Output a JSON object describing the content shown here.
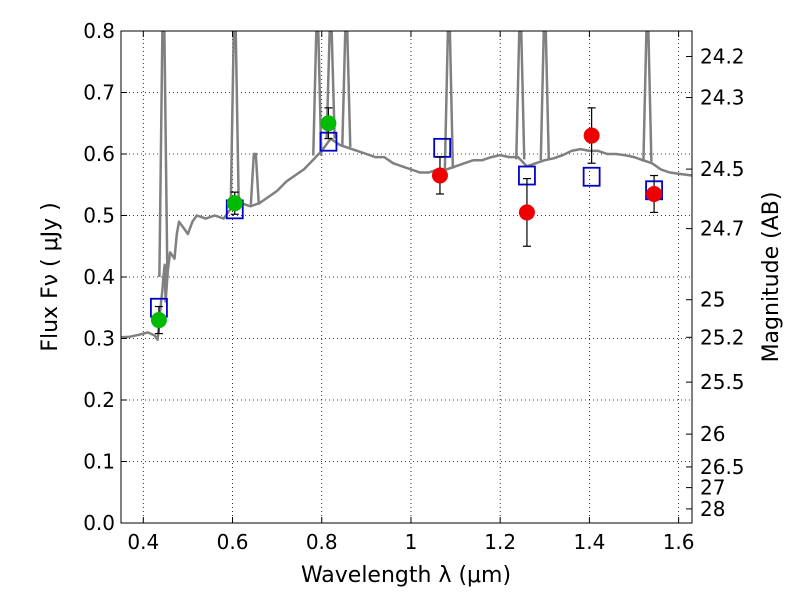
{
  "chart_data": {
    "type": "scatter",
    "title": "",
    "xlabel": "Wavelength  λ (μm)",
    "ylabel": "Flux  Fν  ( μJy )",
    "ylabel_right": "Magnitude (AB)",
    "xlim": [
      0.35,
      1.63
    ],
    "ylim": [
      0.0,
      0.8
    ],
    "grid": true,
    "x_ticks": [
      0.4,
      0.6,
      0.8,
      1.0,
      1.2,
      1.4,
      1.6
    ],
    "x_tick_labels": [
      "0.4",
      "0.6",
      "0.8",
      "1",
      "1.2",
      "1.4",
      "1.6"
    ],
    "y_ticks": [
      0.0,
      0.1,
      0.2,
      0.3,
      0.4,
      0.5,
      0.6,
      0.7,
      0.8
    ],
    "y_tick_labels": [
      "0.0",
      "0.1",
      "0.2",
      "0.3",
      "0.4",
      "0.5",
      "0.6",
      "0.7",
      "0.8"
    ],
    "right_ticks": [
      {
        "mag": 24.2,
        "label": "24.2"
      },
      {
        "mag": 24.3,
        "label": "24.3"
      },
      {
        "mag": 24.5,
        "label": "24.5"
      },
      {
        "mag": 24.7,
        "label": "24.7"
      },
      {
        "mag": 25.0,
        "label": "25"
      },
      {
        "mag": 25.2,
        "label": "25.2"
      },
      {
        "mag": 25.5,
        "label": "25.5"
      },
      {
        "mag": 26.0,
        "label": "26"
      },
      {
        "mag": 26.5,
        "label": "26.5"
      },
      {
        "mag": 27.0,
        "label": "27"
      },
      {
        "mag": 28.0,
        "label": "28"
      }
    ],
    "series": [
      {
        "kind": "spectrum",
        "color": "#808080",
        "points": [
          [
            0.35,
            0.302
          ],
          [
            0.37,
            0.303
          ],
          [
            0.39,
            0.306
          ],
          [
            0.41,
            0.31
          ],
          [
            0.425,
            0.305
          ],
          [
            0.432,
            0.298
          ],
          [
            0.436,
            0.33
          ],
          [
            0.44,
            0.36
          ],
          [
            0.443,
            0.38
          ],
          [
            0.445,
            0.4
          ],
          [
            0.448,
            0.42
          ],
          [
            0.45,
            0.36
          ],
          [
            0.455,
            0.41
          ],
          [
            0.46,
            0.44
          ],
          [
            0.47,
            0.43
          ],
          [
            0.475,
            0.47
          ],
          [
            0.48,
            0.49
          ],
          [
            0.49,
            0.48
          ],
          [
            0.5,
            0.47
          ],
          [
            0.51,
            0.49
          ],
          [
            0.52,
            0.5
          ],
          [
            0.54,
            0.495
          ],
          [
            0.56,
            0.5
          ],
          [
            0.58,
            0.495
          ],
          [
            0.595,
            0.51
          ],
          [
            0.6,
            0.515
          ],
          [
            0.62,
            0.52
          ],
          [
            0.64,
            0.515
          ],
          [
            0.66,
            0.52
          ],
          [
            0.68,
            0.53
          ],
          [
            0.7,
            0.54
          ],
          [
            0.72,
            0.555
          ],
          [
            0.74,
            0.565
          ],
          [
            0.76,
            0.575
          ],
          [
            0.78,
            0.59
          ],
          [
            0.8,
            0.605
          ],
          [
            0.82,
            0.625
          ],
          [
            0.84,
            0.615
          ],
          [
            0.86,
            0.61
          ],
          [
            0.88,
            0.605
          ],
          [
            0.9,
            0.6
          ],
          [
            0.92,
            0.595
          ],
          [
            0.94,
            0.595
          ],
          [
            0.96,
            0.585
          ],
          [
            0.98,
            0.58
          ],
          [
            1.0,
            0.575
          ],
          [
            1.02,
            0.57
          ],
          [
            1.04,
            0.57
          ],
          [
            1.06,
            0.575
          ],
          [
            1.08,
            0.575
          ],
          [
            1.1,
            0.58
          ],
          [
            1.12,
            0.585
          ],
          [
            1.14,
            0.59
          ],
          [
            1.16,
            0.59
          ],
          [
            1.18,
            0.595
          ],
          [
            1.2,
            0.598
          ],
          [
            1.22,
            0.595
          ],
          [
            1.24,
            0.595
          ],
          [
            1.26,
            0.58
          ],
          [
            1.28,
            0.585
          ],
          [
            1.3,
            0.59
          ],
          [
            1.32,
            0.593
          ],
          [
            1.34,
            0.598
          ],
          [
            1.36,
            0.605
          ],
          [
            1.38,
            0.608
          ],
          [
            1.4,
            0.605
          ],
          [
            1.42,
            0.605
          ],
          [
            1.44,
            0.6
          ],
          [
            1.46,
            0.6
          ],
          [
            1.48,
            0.598
          ],
          [
            1.5,
            0.595
          ],
          [
            1.52,
            0.59
          ],
          [
            1.54,
            0.585
          ],
          [
            1.56,
            0.575
          ],
          [
            1.58,
            0.57
          ],
          [
            1.6,
            0.568
          ],
          [
            1.63,
            0.565
          ]
        ],
        "emission_lines": [
          {
            "x": 0.445,
            "peak": 0.8
          },
          {
            "x": 0.605,
            "peak": 0.8
          },
          {
            "x": 0.65,
            "peak": 0.6
          },
          {
            "x": 0.79,
            "peak": 0.8
          },
          {
            "x": 0.82,
            "peak": 0.8
          },
          {
            "x": 0.855,
            "peak": 0.8
          },
          {
            "x": 1.085,
            "peak": 0.8
          },
          {
            "x": 1.245,
            "peak": 0.8
          },
          {
            "x": 1.3,
            "peak": 0.8
          },
          {
            "x": 1.53,
            "peak": 0.8
          }
        ]
      },
      {
        "kind": "model-squares",
        "color": "#0000cc",
        "points": [
          [
            0.435,
            0.35
          ],
          [
            0.605,
            0.51
          ],
          [
            0.815,
            0.62
          ],
          [
            1.07,
            0.61
          ],
          [
            1.26,
            0.565
          ],
          [
            1.405,
            0.563
          ],
          [
            1.545,
            0.541
          ]
        ]
      },
      {
        "kind": "green-points",
        "color": "#00bb00",
        "points": [
          {
            "x": 0.435,
            "y": 0.33,
            "err": 0.022
          },
          {
            "x": 0.605,
            "y": 0.52,
            "err": 0.018
          },
          {
            "x": 0.815,
            "y": 0.65,
            "err": 0.025
          }
        ]
      },
      {
        "kind": "red-points",
        "color": "#ee0000",
        "points": [
          {
            "x": 1.065,
            "y": 0.565,
            "err": 0.03
          },
          {
            "x": 1.26,
            "y": 0.505,
            "err": 0.055
          },
          {
            "x": 1.405,
            "y": 0.63,
            "err": 0.045
          },
          {
            "x": 1.545,
            "y": 0.535,
            "err": 0.03
          }
        ]
      }
    ]
  }
}
